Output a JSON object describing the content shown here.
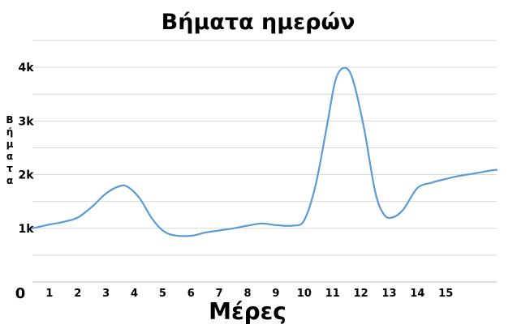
{
  "chart_data": {
    "type": "line",
    "title": "Βήματα ημερών",
    "xlabel": "Μέρες",
    "ylabel": "Βήματα",
    "origin_label": "0",
    "x_ticks": [
      "1",
      "2",
      "3",
      "4",
      "5",
      "6",
      "7",
      "8",
      "9",
      "10",
      "11",
      "12",
      "13",
      "14",
      "15"
    ],
    "y_ticks": [
      {
        "value": 1000,
        "label": "1k"
      },
      {
        "value": 2000,
        "label": "2k"
      },
      {
        "value": 3000,
        "label": "3k"
      },
      {
        "value": 4000,
        "label": "4k"
      }
    ],
    "gridlines_y": [
      500,
      1000,
      1500,
      2000,
      2500,
      3000,
      3500,
      4000,
      4500
    ],
    "ylim": [
      0,
      4500
    ],
    "xlim": [
      0.4,
      16.8
    ],
    "grid": true,
    "series": [
      {
        "color": "#5b9bd5",
        "points": [
          [
            0.4,
            1000
          ],
          [
            1.0,
            1070
          ],
          [
            1.5,
            1120
          ],
          [
            2.0,
            1200
          ],
          [
            2.5,
            1400
          ],
          [
            3.0,
            1650
          ],
          [
            3.5,
            1790
          ],
          [
            3.8,
            1760
          ],
          [
            4.2,
            1550
          ],
          [
            4.6,
            1200
          ],
          [
            5.0,
            960
          ],
          [
            5.4,
            870
          ],
          [
            6.0,
            860
          ],
          [
            6.5,
            920
          ],
          [
            7.0,
            960
          ],
          [
            7.5,
            1000
          ],
          [
            8.0,
            1050
          ],
          [
            8.5,
            1090
          ],
          [
            9.0,
            1060
          ],
          [
            9.6,
            1050
          ],
          [
            10.0,
            1150
          ],
          [
            10.4,
            1800
          ],
          [
            10.8,
            2900
          ],
          [
            11.1,
            3750
          ],
          [
            11.4,
            3990
          ],
          [
            11.7,
            3800
          ],
          [
            12.1,
            2900
          ],
          [
            12.5,
            1700
          ],
          [
            12.8,
            1270
          ],
          [
            13.1,
            1200
          ],
          [
            13.5,
            1350
          ],
          [
            14.0,
            1750
          ],
          [
            14.5,
            1850
          ],
          [
            15.0,
            1920
          ],
          [
            15.5,
            1980
          ],
          [
            16.0,
            2020
          ],
          [
            16.5,
            2070
          ],
          [
            16.8,
            2090
          ]
        ]
      }
    ]
  }
}
